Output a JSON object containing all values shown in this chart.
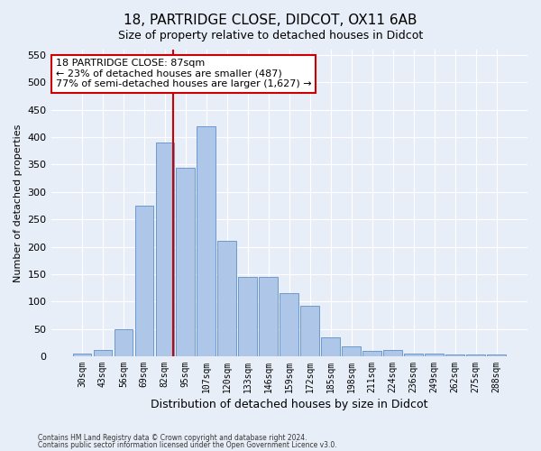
{
  "title1": "18, PARTRIDGE CLOSE, DIDCOT, OX11 6AB",
  "title2": "Size of property relative to detached houses in Didcot",
  "xlabel": "Distribution of detached houses by size in Didcot",
  "ylabel": "Number of detached properties",
  "categories": [
    "30sqm",
    "43sqm",
    "56sqm",
    "69sqm",
    "82sqm",
    "95sqm",
    "107sqm",
    "120sqm",
    "133sqm",
    "146sqm",
    "159sqm",
    "172sqm",
    "185sqm",
    "198sqm",
    "211sqm",
    "224sqm",
    "236sqm",
    "249sqm",
    "262sqm",
    "275sqm",
    "288sqm"
  ],
  "values": [
    5,
    12,
    50,
    275,
    390,
    345,
    420,
    210,
    145,
    145,
    116,
    92,
    35,
    18,
    10,
    12,
    5,
    5,
    4,
    3,
    4
  ],
  "bar_color": "#aec6e8",
  "bar_edge_color": "#5b8fc9",
  "vline_color": "#cc0000",
  "annotation_text": "18 PARTRIDGE CLOSE: 87sqm\n← 23% of detached houses are smaller (487)\n77% of semi-detached houses are larger (1,627) →",
  "annotation_box_color": "#ffffff",
  "annotation_box_edge": "#cc0000",
  "ylim": [
    0,
    560
  ],
  "yticks": [
    0,
    50,
    100,
    150,
    200,
    250,
    300,
    350,
    400,
    450,
    500,
    550
  ],
  "footer1": "Contains HM Land Registry data © Crown copyright and database right 2024.",
  "footer2": "Contains public sector information licensed under the Open Government Licence v3.0.",
  "bg_color": "#e8eef8",
  "plot_bg_color": "#e8eef8",
  "title1_fontsize": 11,
  "title2_fontsize": 9,
  "xlabel_fontsize": 9,
  "ylabel_fontsize": 8
}
